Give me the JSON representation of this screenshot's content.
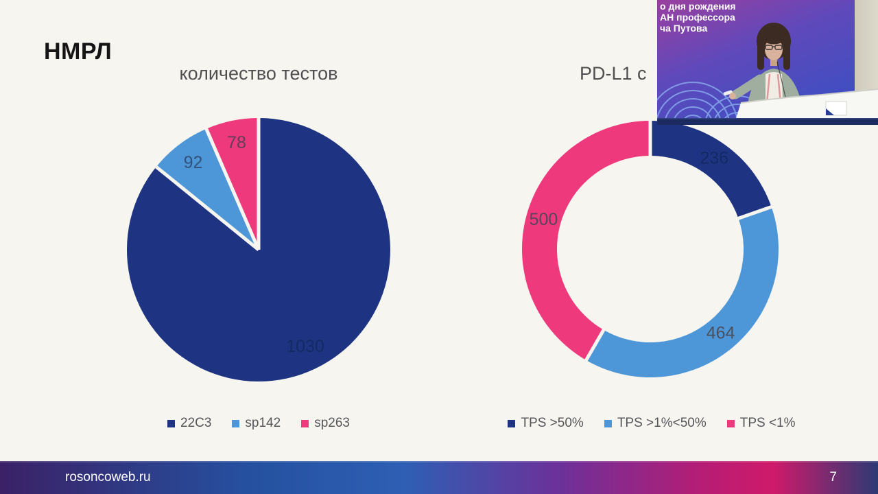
{
  "slide": {
    "title": "НМРЛ"
  },
  "webcam": {
    "caption_lines": [
      "о дня рождения",
      "АН профессора",
      "ча Путова"
    ]
  },
  "footer": {
    "website": "rosoncoweb.ru",
    "page_number": "7"
  },
  "chart_data": [
    {
      "type": "pie",
      "title": "количество тестов",
      "legend_position": "bottom",
      "series": [
        {
          "label": "22C3",
          "value": 1030,
          "color": "#1e3382",
          "value_label_color": "#142a63"
        },
        {
          "label": "sp142",
          "value": 92,
          "color": "#4d97d8",
          "value_label_color": "#33517b"
        },
        {
          "label": "sp263",
          "value": 78,
          "color": "#ee3a7c",
          "value_label_color": "#5f3f57"
        }
      ]
    },
    {
      "type": "donut",
      "title": "PD-L1 с",
      "legend_position": "bottom",
      "series": [
        {
          "label": "TPS >50%",
          "value": 236,
          "color": "#1e3382",
          "value_label_color": "#142a63"
        },
        {
          "label": "TPS >1%<50%",
          "value": 464,
          "color": "#4d97d8",
          "value_label_color": "#4b4f5c"
        },
        {
          "label": "TPS <1%",
          "value": 500,
          "color": "#ee3a7c",
          "value_label_color": "#59445c"
        }
      ]
    }
  ]
}
